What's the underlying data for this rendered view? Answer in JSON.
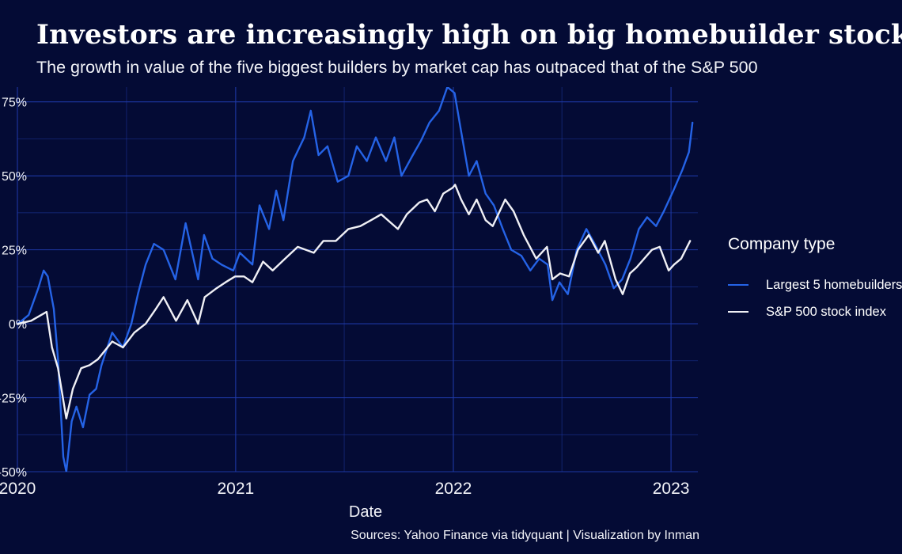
{
  "title": "Investors are increasingly high on big homebuilder stocks",
  "subtitle": "The growth in value of the five biggest builders by market cap has outpaced that of the S&P 500",
  "source": "Sources: Yahoo Finance via tidyquant | Visualization by Inman",
  "colors": {
    "background": "#040b35",
    "grid": "#1f3aa8",
    "homebuilders": "#2563e6",
    "sp500": "#f0f0f5"
  },
  "chart_data": {
    "type": "line",
    "xlabel": "Date",
    "ylabel": "",
    "x_ticks": [
      "2020",
      "2021",
      "2022",
      "2023"
    ],
    "y_ticks": [
      "-50%",
      "-25%",
      "0%",
      "25%",
      "50%",
      "75%"
    ],
    "xlim": [
      "2020-01-01",
      "2023-02-15"
    ],
    "ylim": [
      -50,
      80
    ],
    "grid": true,
    "legend": {
      "title": "Company type",
      "position": "right"
    },
    "series": [
      {
        "name": "Largest 5 homebuilders",
        "points": [
          [
            "2020-01-02",
            0
          ],
          [
            "2020-01-20",
            3
          ],
          [
            "2020-02-05",
            12
          ],
          [
            "2020-02-14",
            18
          ],
          [
            "2020-02-21",
            16
          ],
          [
            "2020-03-02",
            5
          ],
          [
            "2020-03-09",
            -12
          ],
          [
            "2020-03-18",
            -45
          ],
          [
            "2020-03-23",
            -50
          ],
          [
            "2020-04-01",
            -33
          ],
          [
            "2020-04-09",
            -28
          ],
          [
            "2020-04-20",
            -35
          ],
          [
            "2020-05-01",
            -24
          ],
          [
            "2020-05-12",
            -22
          ],
          [
            "2020-05-21",
            -14
          ],
          [
            "2020-06-08",
            -3
          ],
          [
            "2020-06-26",
            -8
          ],
          [
            "2020-07-10",
            0
          ],
          [
            "2020-07-21",
            10
          ],
          [
            "2020-08-03",
            20
          ],
          [
            "2020-08-17",
            27
          ],
          [
            "2020-09-02",
            25
          ],
          [
            "2020-09-22",
            15
          ],
          [
            "2020-10-09",
            34
          ],
          [
            "2020-10-30",
            15
          ],
          [
            "2020-11-09",
            30
          ],
          [
            "2020-11-23",
            22
          ],
          [
            "2020-12-08",
            20
          ],
          [
            "2020-12-28",
            18
          ],
          [
            "2021-01-08",
            24
          ],
          [
            "2021-01-29",
            20
          ],
          [
            "2021-02-10",
            40
          ],
          [
            "2021-02-26",
            32
          ],
          [
            "2021-03-10",
            45
          ],
          [
            "2021-03-22",
            35
          ],
          [
            "2021-04-07",
            55
          ],
          [
            "2021-04-26",
            63
          ],
          [
            "2021-05-07",
            72
          ],
          [
            "2021-05-20",
            57
          ],
          [
            "2021-06-04",
            60
          ],
          [
            "2021-06-21",
            48
          ],
          [
            "2021-07-09",
            50
          ],
          [
            "2021-07-23",
            60
          ],
          [
            "2021-08-09",
            55
          ],
          [
            "2021-08-24",
            63
          ],
          [
            "2021-09-10",
            55
          ],
          [
            "2021-09-24",
            63
          ],
          [
            "2021-10-06",
            50
          ],
          [
            "2021-10-25",
            57
          ],
          [
            "2021-11-08",
            62
          ],
          [
            "2021-11-22",
            68
          ],
          [
            "2021-12-08",
            72
          ],
          [
            "2021-12-22",
            80
          ],
          [
            "2022-01-03",
            78
          ],
          [
            "2022-01-14",
            65
          ],
          [
            "2022-01-27",
            50
          ],
          [
            "2022-02-09",
            55
          ],
          [
            "2022-02-24",
            44
          ],
          [
            "2022-03-10",
            40
          ],
          [
            "2022-03-25",
            32
          ],
          [
            "2022-04-08",
            25
          ],
          [
            "2022-04-25",
            23
          ],
          [
            "2022-05-10",
            18
          ],
          [
            "2022-05-25",
            22
          ],
          [
            "2022-06-08",
            20
          ],
          [
            "2022-06-16",
            8
          ],
          [
            "2022-06-28",
            14
          ],
          [
            "2022-07-12",
            10
          ],
          [
            "2022-07-27",
            25
          ],
          [
            "2022-08-12",
            32
          ],
          [
            "2022-08-26",
            27
          ],
          [
            "2022-09-13",
            20
          ],
          [
            "2022-09-27",
            12
          ],
          [
            "2022-10-11",
            15
          ],
          [
            "2022-10-25",
            22
          ],
          [
            "2022-11-08",
            32
          ],
          [
            "2022-11-22",
            36
          ],
          [
            "2022-12-07",
            33
          ],
          [
            "2022-12-20",
            38
          ],
          [
            "2023-01-05",
            45
          ],
          [
            "2023-01-20",
            52
          ],
          [
            "2023-01-31",
            58
          ],
          [
            "2023-02-06",
            68
          ]
        ]
      },
      {
        "name": "S&P 500 stock index",
        "points": [
          [
            "2020-01-02",
            0
          ],
          [
            "2020-01-24",
            1
          ],
          [
            "2020-02-19",
            4
          ],
          [
            "2020-02-28",
            -8
          ],
          [
            "2020-03-09",
            -15
          ],
          [
            "2020-03-23",
            -32
          ],
          [
            "2020-04-03",
            -22
          ],
          [
            "2020-04-17",
            -15
          ],
          [
            "2020-05-01",
            -14
          ],
          [
            "2020-05-15",
            -12
          ],
          [
            "2020-06-08",
            -6
          ],
          [
            "2020-06-26",
            -8
          ],
          [
            "2020-07-15",
            -3
          ],
          [
            "2020-08-03",
            0
          ],
          [
            "2020-08-20",
            5
          ],
          [
            "2020-09-02",
            9
          ],
          [
            "2020-09-23",
            1
          ],
          [
            "2020-10-12",
            8
          ],
          [
            "2020-10-30",
            0
          ],
          [
            "2020-11-10",
            9
          ],
          [
            "2020-11-30",
            12
          ],
          [
            "2020-12-15",
            14
          ],
          [
            "2020-12-31",
            16
          ],
          [
            "2021-01-15",
            16
          ],
          [
            "2021-01-29",
            14
          ],
          [
            "2021-02-16",
            21
          ],
          [
            "2021-03-04",
            18
          ],
          [
            "2021-03-25",
            22
          ],
          [
            "2021-04-15",
            26
          ],
          [
            "2021-05-12",
            24
          ],
          [
            "2021-05-28",
            28
          ],
          [
            "2021-06-18",
            28
          ],
          [
            "2021-07-09",
            32
          ],
          [
            "2021-07-29",
            33
          ],
          [
            "2021-08-16",
            35
          ],
          [
            "2021-09-02",
            37
          ],
          [
            "2021-09-30",
            32
          ],
          [
            "2021-10-15",
            37
          ],
          [
            "2021-11-05",
            41
          ],
          [
            "2021-11-18",
            42
          ],
          [
            "2021-12-01",
            38
          ],
          [
            "2021-12-15",
            44
          ],
          [
            "2021-12-31",
            46
          ],
          [
            "2022-01-04",
            47
          ],
          [
            "2022-01-14",
            42
          ],
          [
            "2022-01-27",
            37
          ],
          [
            "2022-02-09",
            42
          ],
          [
            "2022-02-24",
            35
          ],
          [
            "2022-03-08",
            33
          ],
          [
            "2022-03-29",
            42
          ],
          [
            "2022-04-12",
            38
          ],
          [
            "2022-04-29",
            30
          ],
          [
            "2022-05-20",
            22
          ],
          [
            "2022-06-07",
            26
          ],
          [
            "2022-06-16",
            15
          ],
          [
            "2022-06-29",
            17
          ],
          [
            "2022-07-14",
            16
          ],
          [
            "2022-07-29",
            25
          ],
          [
            "2022-08-16",
            30
          ],
          [
            "2022-09-01",
            24
          ],
          [
            "2022-09-12",
            28
          ],
          [
            "2022-09-30",
            15
          ],
          [
            "2022-10-12",
            10
          ],
          [
            "2022-10-24",
            17
          ],
          [
            "2022-11-04",
            19
          ],
          [
            "2022-11-30",
            25
          ],
          [
            "2022-12-13",
            26
          ],
          [
            "2022-12-28",
            18
          ],
          [
            "2023-01-06",
            20
          ],
          [
            "2023-01-18",
            22
          ],
          [
            "2023-02-02",
            28
          ]
        ]
      }
    ]
  }
}
